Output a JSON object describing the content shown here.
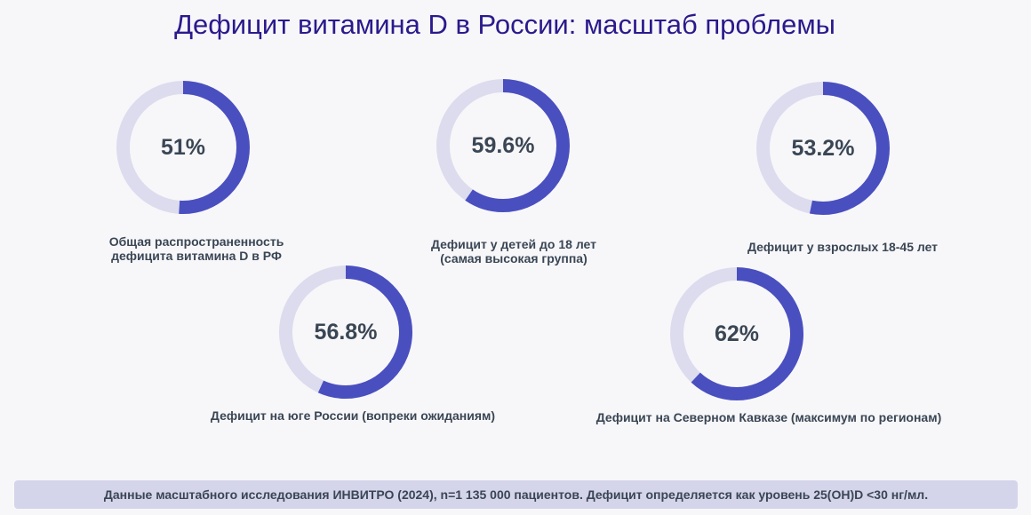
{
  "title": "Дефицит витамина D в России: масштаб проблемы",
  "colors": {
    "accent": "#4a4fbf",
    "track": "#dcdcee",
    "title": "#2a1a8c",
    "text": "#3a4654",
    "footnote_bg": "#d4d4ea"
  },
  "chart_data": {
    "type": "pie",
    "items": [
      {
        "value": 51,
        "value_label": "51%",
        "label_lines": [
          "Общая распространенность",
          "дефицита витамина D в РФ"
        ]
      },
      {
        "value": 59.6,
        "value_label": "59.6%",
        "label_lines": [
          "Дефицит у детей до 18 лет",
          "(самая высокая группа)"
        ]
      },
      {
        "value": 53.2,
        "value_label": "53.2%",
        "label_lines": [
          "Дефицит у взрослых 18-45 лет"
        ]
      },
      {
        "value": 56.8,
        "value_label": "56.8%",
        "label_lines": [
          "Дефицит на юге России (вопреки ожиданиям)"
        ]
      },
      {
        "value": 62,
        "value_label": "62%",
        "label_lines": [
          "Дефицит на Северном Кавказе (максимум по регионам)"
        ]
      }
    ]
  },
  "footnote": "Данные масштабного исследования ИНВИТРО (2024), n=1 135 000 пациентов. Дефицит определяется как уровень 25(OH)D <30 нг/мл."
}
